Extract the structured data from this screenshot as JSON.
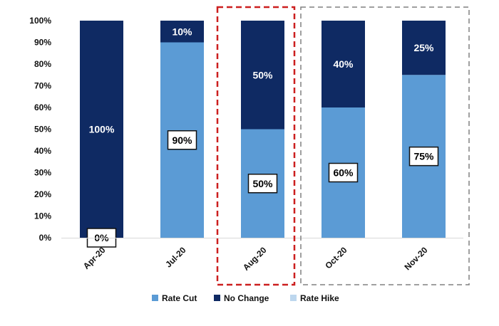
{
  "chart_data": {
    "type": "bar",
    "stacked": true,
    "percent": true,
    "title": "",
    "xlabel": "",
    "ylabel": "",
    "ylim": [
      0,
      100
    ],
    "yticks": [
      "0%",
      "10%",
      "20%",
      "30%",
      "40%",
      "50%",
      "60%",
      "70%",
      "80%",
      "90%",
      "100%"
    ],
    "categories": [
      "Apr-20",
      "Jul-20",
      "Aug-20",
      "Oct-20",
      "Nov-20"
    ],
    "series": [
      {
        "name": "Rate Cut",
        "color": "#5b9bd5",
        "values": [
          0,
          90,
          50,
          60,
          75
        ],
        "labels": [
          "0%",
          "90%",
          "50%",
          "60%",
          "75%"
        ]
      },
      {
        "name": "No Change",
        "color": "#0f2a63",
        "values": [
          100,
          10,
          50,
          40,
          25
        ],
        "labels": [
          "100%",
          "10%",
          "50%",
          "40%",
          "25%"
        ]
      },
      {
        "name": "Rate Hike",
        "color": "#bdd7ee",
        "values": [
          0,
          0,
          0,
          0,
          0
        ],
        "labels": [
          "",
          "",
          "",
          "",
          ""
        ]
      }
    ],
    "legend": {
      "position": "bottom",
      "entries": [
        "Rate Cut",
        "No Change",
        "Rate Hike"
      ]
    },
    "annotations": [
      {
        "type": "highlight-box",
        "style": "dashed",
        "color": "#cc1f1f",
        "categories": [
          "Aug-20"
        ]
      },
      {
        "type": "highlight-box",
        "style": "dashed",
        "color": "#808080",
        "categories": [
          "Oct-20",
          "Nov-20"
        ]
      }
    ]
  }
}
